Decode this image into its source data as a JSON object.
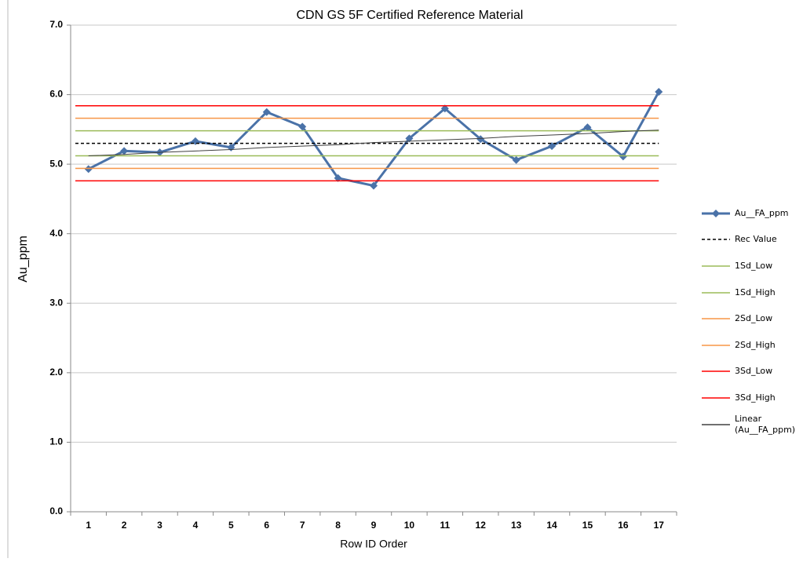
{
  "chart_data": {
    "type": "line",
    "title": "CDN GS 5F Certified Reference Material",
    "x_label": "Row ID Order",
    "y_label": "Au_ppm",
    "categories": [
      "1",
      "2",
      "3",
      "4",
      "5",
      "6",
      "7",
      "8",
      "9",
      "10",
      "11",
      "12",
      "13",
      "14",
      "15",
      "16",
      "17"
    ],
    "ylim": [
      0,
      7
    ],
    "yticks": [
      {
        "value": 0,
        "label": "0.0"
      },
      {
        "value": 1,
        "label": "1.0"
      },
      {
        "value": 2,
        "label": "2.0"
      },
      {
        "value": 3,
        "label": "3.0"
      },
      {
        "value": 4,
        "label": "4.0"
      },
      {
        "value": 5,
        "label": "5.0"
      },
      {
        "value": 6,
        "label": "6.0"
      },
      {
        "value": 7,
        "label": "7.0"
      }
    ],
    "grid": true,
    "legend": "right",
    "series": [
      {
        "name": "Au__FA_ppm",
        "color": "#4a72a8",
        "values": [
          4.93,
          5.19,
          5.17,
          5.33,
          5.24,
          5.75,
          5.54,
          4.8,
          4.69,
          5.37,
          5.8,
          5.36,
          5.06,
          5.26,
          5.53,
          5.11,
          6.04
        ]
      },
      {
        "name": "Rec Value",
        "color": "#000000",
        "dashed": true,
        "value": 5.3
      },
      {
        "name": "1Sd_Low",
        "color": "#9bbb59",
        "value": 5.12
      },
      {
        "name": "1Sd_High",
        "color": "#9bbb59",
        "value": 5.48
      },
      {
        "name": "2Sd_Low",
        "color": "#f79646",
        "value": 4.94
      },
      {
        "name": "2Sd_High",
        "color": "#f79646",
        "value": 5.66
      },
      {
        "name": "3Sd_Low",
        "color": "#ff0000",
        "value": 4.76
      },
      {
        "name": "3Sd_High",
        "color": "#ff0000",
        "value": 5.84
      },
      {
        "name": "Linear (Au__FA_ppm)",
        "color": "#404040",
        "values": [
          5.12,
          5.14,
          5.17,
          5.19,
          5.21,
          5.24,
          5.26,
          5.28,
          5.31,
          5.33,
          5.35,
          5.37,
          5.4,
          5.42,
          5.44,
          5.47,
          5.49
        ]
      }
    ]
  }
}
